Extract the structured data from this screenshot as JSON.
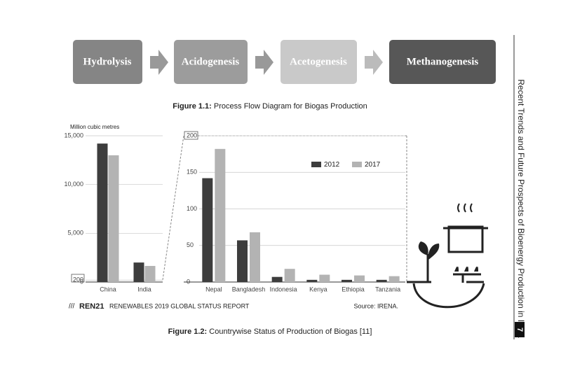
{
  "process_flow": {
    "nodes": [
      "Hydrolysis",
      "Acidogenesis",
      "Acetogenesis",
      "Methanogenesis"
    ]
  },
  "figure_1_1": {
    "label": "Figure 1.1:",
    "text": "Process Flow Diagram for Biogas Production"
  },
  "chart_data": [
    {
      "type": "bar",
      "y_label": "Million cubic metres",
      "categories": [
        "China",
        "India"
      ],
      "series": [
        {
          "color": "#3d3d3d",
          "values": [
            14200,
            2000
          ]
        },
        {
          "color": "#b3b3b3",
          "values": [
            13000,
            1650
          ]
        }
      ],
      "ylim": [
        0,
        15000
      ],
      "yticks": [
        0,
        200,
        {
          "value": 5000,
          "label": "5,000"
        },
        {
          "value": 10000,
          "label": "10,000"
        },
        {
          "value": 15000,
          "label": "15,000"
        }
      ],
      "grid": true
    },
    {
      "type": "bar",
      "categories": [
        "Nepal",
        "Bangladesh",
        "Indonesia",
        "Kenya",
        "Ethiopia",
        "Tanzania"
      ],
      "series": [
        {
          "name": "2012",
          "color": "#3d3d3d",
          "values": [
            142,
            57,
            7,
            3,
            3,
            3
          ]
        },
        {
          "name": "2017",
          "color": "#b3b3b3",
          "values": [
            182,
            68,
            18,
            10,
            9,
            8
          ]
        }
      ],
      "ylim": [
        0,
        200
      ],
      "yticks": [
        0,
        50,
        100,
        150,
        200
      ],
      "grid": true,
      "legend": "top-right"
    }
  ],
  "chart_footer": {
    "logo": "REN21",
    "report": "RENEWABLES 2019 GLOBAL STATUS REPORT",
    "source": "Source: IRENA."
  },
  "figure_1_2": {
    "label": "Figure 1.2:",
    "text": "Countrywise Status of Production of Biogas [11]"
  },
  "running_head": "Recent Trends and Future Prospects of Bioenergy Production in India",
  "page_number": "7"
}
